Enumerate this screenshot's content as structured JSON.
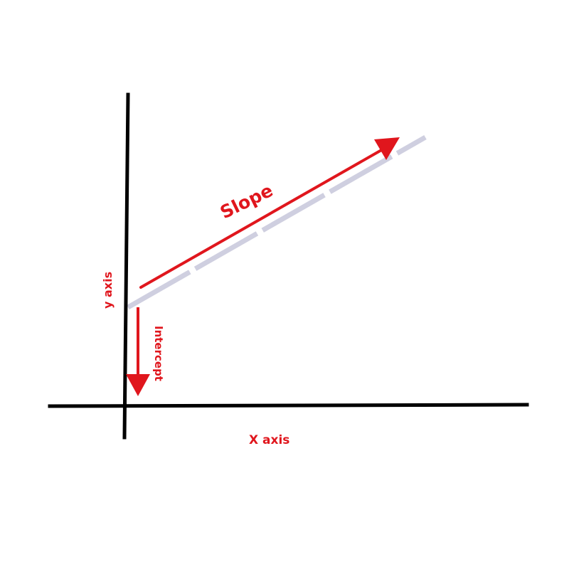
{
  "diagram": {
    "labels": {
      "slope": "Slope",
      "intercept": "Intercept",
      "y_axis": "y axis",
      "x_axis": "X axis"
    },
    "colors": {
      "axis": "#000000",
      "annotation": "#e0161d",
      "regression_line": "#cfcfe0",
      "background": "#ffffff"
    }
  }
}
